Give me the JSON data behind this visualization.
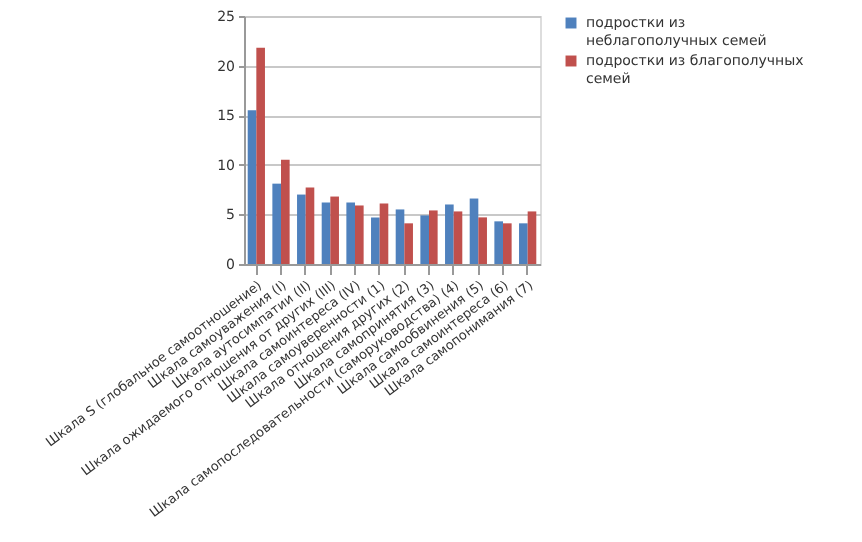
{
  "chart_data": {
    "type": "bar",
    "categories": [
      "Шкала S (глобальное самоотношение)",
      "Шкала самоуважения (I)",
      "Шкала аутосимпатии (II)",
      "Шкала ожидаемого отношения от других (III)",
      "Шкала самоинтереса (IV)",
      "Шкала самоуверенности (1)",
      "Шкала отношения других (2)",
      "Шкала самопринятия (3)",
      "Шкала самопоследовательности (саморуководства) (4)",
      "Шкала самообвинения (5)",
      "Шкала самоинтереса (6)",
      "Шкала самопонимания (7)"
    ],
    "series": [
      {
        "name": "подростки из неблагополучных семей",
        "color": "#4f81bd",
        "values": [
          15.5,
          8.1,
          7.0,
          6.2,
          6.2,
          4.7,
          5.5,
          4.9,
          6.0,
          6.6,
          4.3,
          4.1
        ]
      },
      {
        "name": "подростки из  благополучных семей",
        "color": "#c0504d",
        "values": [
          21.8,
          10.5,
          7.7,
          6.8,
          5.9,
          6.1,
          4.1,
          5.4,
          5.3,
          4.7,
          4.1,
          5.3
        ]
      }
    ],
    "ylim": [
      0,
      25
    ],
    "yticks": [
      0,
      5,
      10,
      15,
      20,
      25
    ],
    "grid": "y",
    "legend": "right"
  }
}
